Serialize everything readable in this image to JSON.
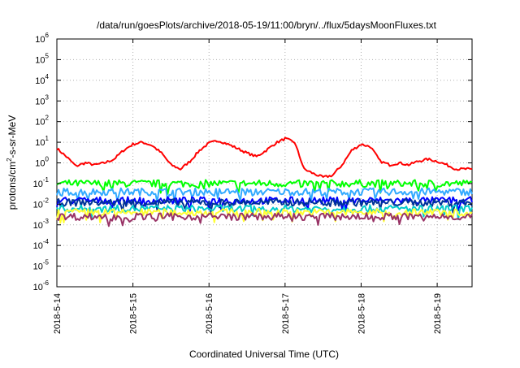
{
  "chart_data": {
    "type": "line",
    "title": "/data/run/goesPlots/archive/2018-05-19/11:00/bryn/../flux/5daysMoonFluxes.txt",
    "xlabel": "Coordinated Universal Time (UTC)",
    "ylabel": {
      "prefix": "protons/cm",
      "sup": "2",
      "suffix": "-s-sr-MeV"
    },
    "yscale": "log",
    "ylim": [
      1e-06,
      1000000.0
    ],
    "yticks": [
      {
        "base": "10",
        "exp": "6"
      },
      {
        "base": "10",
        "exp": "5"
      },
      {
        "base": "10",
        "exp": "4"
      },
      {
        "base": "10",
        "exp": "3"
      },
      {
        "base": "10",
        "exp": "2"
      },
      {
        "base": "10",
        "exp": "1"
      },
      {
        "base": "10",
        "exp": "0"
      },
      {
        "base": "10",
        "exp": "-1"
      },
      {
        "base": "10",
        "exp": "-2"
      },
      {
        "base": "10",
        "exp": "-3"
      },
      {
        "base": "10",
        "exp": "-4"
      },
      {
        "base": "10",
        "exp": "-5"
      },
      {
        "base": "10",
        "exp": "-6"
      }
    ],
    "xlim": [
      "2018-05-14",
      "2018-05-19 11:00"
    ],
    "xticks": [
      "2018-5-14",
      "2018-5-15",
      "2018-5-16",
      "2018-5-17",
      "2018-5-18",
      "2018-5-19"
    ],
    "grid": true,
    "legend": "none",
    "series": [
      {
        "color": "#ff0000",
        "x": [
          "2018-05-14 00:00",
          "2018-05-14 03:00",
          "2018-05-14 06:00",
          "2018-05-14 09:00",
          "2018-05-14 12:00",
          "2018-05-14 15:00",
          "2018-05-14 18:00",
          "2018-05-14 21:00",
          "2018-05-15 00:00",
          "2018-05-15 03:00",
          "2018-05-15 06:00",
          "2018-05-15 09:00",
          "2018-05-15 12:00",
          "2018-05-15 15:00",
          "2018-05-15 18:00",
          "2018-05-15 21:00",
          "2018-05-16 00:00",
          "2018-05-16 03:00",
          "2018-05-16 06:00",
          "2018-05-16 09:00",
          "2018-05-16 12:00",
          "2018-05-16 15:00",
          "2018-05-16 18:00",
          "2018-05-16 21:00",
          "2018-05-17 00:00",
          "2018-05-17 03:00",
          "2018-05-17 06:00",
          "2018-05-17 09:00",
          "2018-05-17 12:00",
          "2018-05-17 15:00",
          "2018-05-17 18:00",
          "2018-05-17 21:00",
          "2018-05-18 00:00",
          "2018-05-18 03:00",
          "2018-05-18 06:00",
          "2018-05-18 09:00",
          "2018-05-18 12:00",
          "2018-05-18 15:00",
          "2018-05-18 18:00",
          "2018-05-18 21:00",
          "2018-05-19 00:00",
          "2018-05-19 03:00",
          "2018-05-19 06:00",
          "2018-05-19 09:00",
          "2018-05-19 11:00"
        ],
        "y": [
          5.0,
          2.0,
          0.7,
          1.0,
          0.8,
          1.0,
          1.5,
          4.0,
          8.0,
          10.0,
          7.0,
          3.0,
          0.8,
          0.5,
          1.2,
          4.0,
          9.0,
          12.0,
          8.0,
          5.0,
          3.0,
          2.0,
          4.0,
          9.0,
          15.0,
          10.0,
          0.5,
          0.3,
          0.2,
          0.25,
          0.8,
          4.0,
          8.0,
          6.0,
          1.2,
          0.8,
          1.0,
          0.8,
          1.2,
          1.5,
          1.2,
          0.8,
          0.5,
          0.5,
          0.5
        ]
      },
      {
        "color": "#00ff00",
        "x": [
          "2018-05-14",
          "2018-05-19 11:00"
        ],
        "y": [
          0.1,
          0.1
        ]
      },
      {
        "color": "#33aaff",
        "x": [
          "2018-05-14",
          "2018-05-19 11:00"
        ],
        "y": [
          0.04,
          0.04
        ]
      },
      {
        "color": "#0000ff",
        "x": [
          "2018-05-14",
          "2018-05-19 11:00"
        ],
        "y": [
          0.015,
          0.015
        ]
      },
      {
        "color": "#003399",
        "x": [
          "2018-05-14",
          "2018-05-19 11:00"
        ],
        "y": [
          0.012,
          0.012
        ]
      },
      {
        "color": "#00cccc",
        "x": [
          "2018-05-14",
          "2018-05-19 11:00"
        ],
        "y": [
          0.006,
          0.006
        ]
      },
      {
        "color": "#ffff33",
        "x": [
          "2018-05-14",
          "2018-05-19 11:00"
        ],
        "y": [
          0.004,
          0.004
        ]
      },
      {
        "color": "#993366",
        "x": [
          "2018-05-14",
          "2018-05-19 11:00"
        ],
        "y": [
          0.0025,
          0.0025
        ]
      }
    ]
  }
}
